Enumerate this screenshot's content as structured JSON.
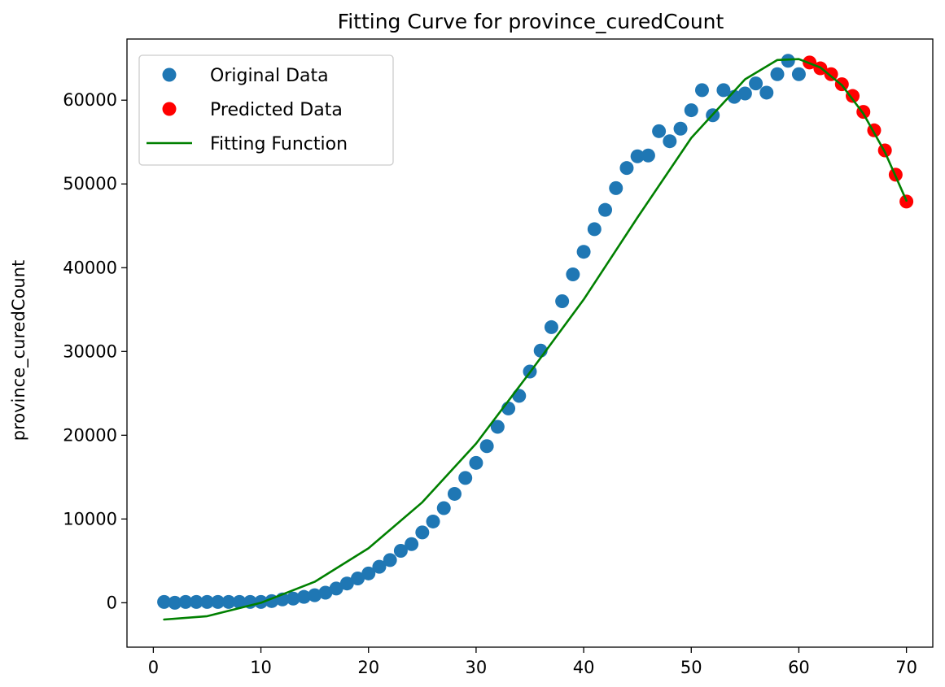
{
  "chart_data": {
    "type": "scatter",
    "title": "Fitting Curve for province_curedCount",
    "xlabel": "",
    "ylabel": "province_curedCount",
    "xlim": [
      -2.45,
      72.45
    ],
    "ylim": [
      -5300,
      67300
    ],
    "xticks": [
      0,
      10,
      20,
      30,
      40,
      50,
      60,
      70
    ],
    "yticks": [
      0,
      10000,
      20000,
      30000,
      40000,
      50000,
      60000
    ],
    "grid": false,
    "legend_position": "upper left",
    "colors": {
      "original": "#1f77b4",
      "predicted": "#ff0000",
      "fit": "#008000",
      "axis": "#000000",
      "legend_border": "#cccccc"
    },
    "series": [
      {
        "name": "Original Data",
        "kind": "scatter",
        "x": [
          1,
          2,
          3,
          4,
          5,
          6,
          7,
          8,
          9,
          10,
          11,
          12,
          13,
          14,
          15,
          16,
          17,
          18,
          19,
          20,
          21,
          22,
          23,
          24,
          25,
          26,
          27,
          28,
          29,
          30,
          31,
          32,
          33,
          34,
          35,
          36,
          37,
          38,
          39,
          40,
          41,
          42,
          43,
          44,
          45,
          46,
          47,
          48,
          49,
          50,
          51,
          52,
          53,
          54,
          55,
          56,
          57,
          58,
          59,
          60
        ],
        "y": [
          100,
          0,
          100,
          100,
          100,
          100,
          100,
          100,
          100,
          100,
          200,
          400,
          500,
          700,
          900,
          1200,
          1700,
          2300,
          2900,
          3500,
          4300,
          5100,
          6200,
          7000,
          8400,
          9700,
          11300,
          13000,
          14900,
          16700,
          18700,
          21000,
          23200,
          24700,
          27600,
          30100,
          32900,
          36000,
          39200,
          41900,
          44600,
          46900,
          49500,
          51900,
          53300,
          53400,
          56300,
          55100,
          56600,
          58800,
          61200,
          58200,
          61200,
          60400,
          60800,
          62000,
          60900,
          63100,
          64700,
          63100
        ]
      },
      {
        "name": "Predicted Data",
        "kind": "scatter",
        "x": [
          61,
          62,
          63,
          64,
          65,
          66,
          67,
          68,
          69,
          70
        ],
        "y": [
          64500,
          63800,
          63100,
          61900,
          60500,
          58600,
          56400,
          54000,
          51100,
          47900
        ]
      },
      {
        "name": "Fitting Function",
        "kind": "line",
        "x": [
          1,
          5,
          10,
          15,
          20,
          25,
          30,
          35,
          40,
          45,
          50,
          55,
          58,
          60,
          62,
          64,
          66,
          68,
          70
        ],
        "y": [
          -2000,
          -1600,
          0,
          2500,
          6500,
          12000,
          19000,
          27500,
          36200,
          46000,
          55500,
          62500,
          64800,
          64900,
          63900,
          61800,
          58400,
          53800,
          48000
        ]
      }
    ]
  }
}
